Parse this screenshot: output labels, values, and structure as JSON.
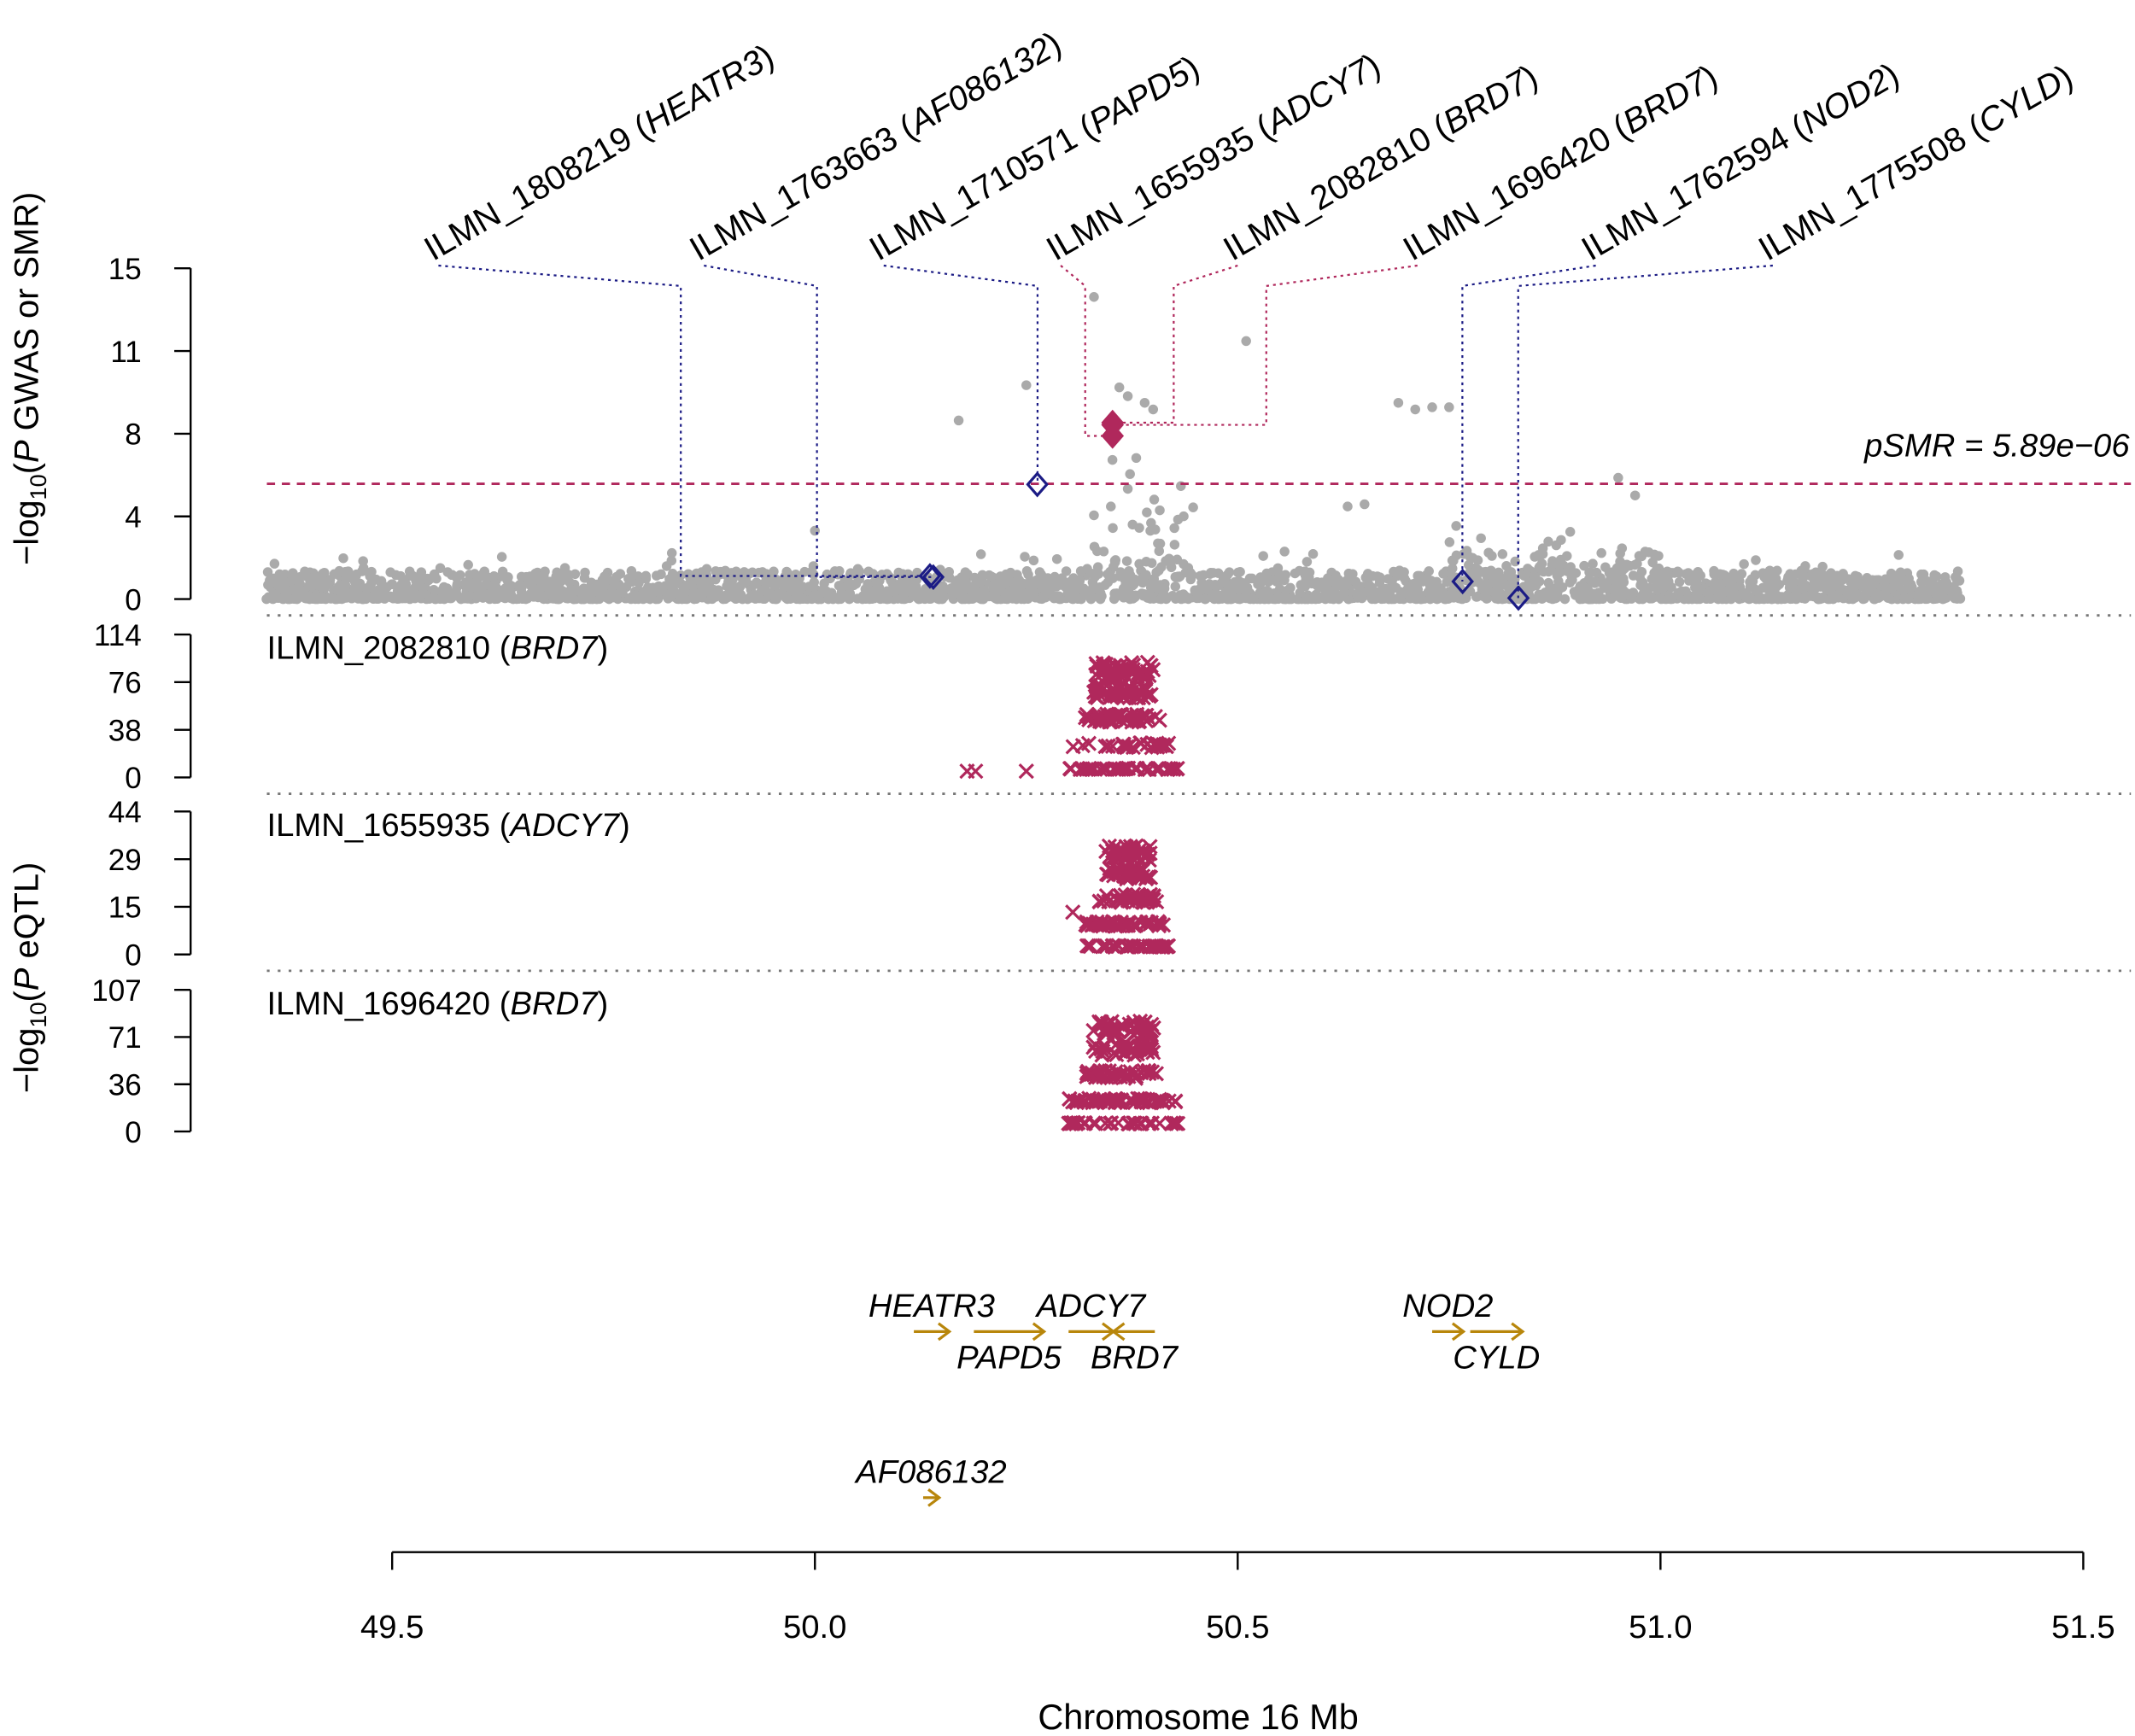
{
  "chart_data": {
    "type": "scatter",
    "xlabel": "Chromosome 16 Mb",
    "xlim": [
      49.5,
      51.5
    ],
    "xticks": [
      "49.5",
      "50.0",
      "50.5",
      "51.0",
      "51.5"
    ],
    "colors": {
      "gwas": "#aaaaaa",
      "smr_sig": "#b0285c",
      "smr_nonsig": "#1c1c85",
      "gene": "#b8860b"
    },
    "top_panel": {
      "ylabel_prefix": "−log",
      "ylabel_sub": "10",
      "ylabel_open": "(",
      "ylabel_italic": "P",
      "ylabel_rest": " GWAS or SMR)",
      "ylim": [
        0,
        15
      ],
      "yticks": [
        "0",
        "4",
        "8",
        "11",
        "15"
      ],
      "threshold": 5.23,
      "threshold_label": "pSMR = 5.89e−06",
      "gwas_peaks": [
        [
          50.33,
          13.7
        ],
        [
          50.51,
          11.7
        ],
        [
          50.25,
          9.7
        ],
        [
          50.17,
          8.1
        ],
        [
          50.69,
          8.9
        ],
        [
          50.71,
          8.6
        ],
        [
          50.73,
          8.7
        ],
        [
          50.75,
          8.7
        ],
        [
          50.36,
          9.6
        ],
        [
          50.37,
          9.2
        ],
        [
          50.39,
          8.9
        ],
        [
          50.4,
          8.6
        ],
        [
          50.38,
          6.4
        ],
        [
          50.33,
          3.8
        ],
        [
          50.35,
          4.2
        ],
        [
          50.37,
          5.0
        ],
        [
          50.0,
          3.1
        ],
        [
          50.63,
          4.2
        ],
        [
          50.65,
          4.3
        ],
        [
          50.95,
          5.5
        ],
        [
          50.97,
          4.7
        ]
      ],
      "probes": [
        {
          "probe": "ILMN_1808219",
          "gene": "HEATR3",
          "sig": false,
          "pos": 50.136,
          "smr": 1.05
        },
        {
          "probe": "ILMN_1763663",
          "gene": "AF086132",
          "sig": false,
          "pos": 50.14,
          "smr": 1.0
        },
        {
          "probe": "ILMN_1710571",
          "gene": "PAPD5",
          "sig": false,
          "pos": 50.263,
          "smr": 5.2
        },
        {
          "probe": "ILMN_1655935",
          "gene": "ADCY7",
          "sig": true,
          "pos": 50.352,
          "smr": 7.4
        },
        {
          "probe": "ILMN_2082810",
          "gene": "BRD7",
          "sig": true,
          "pos": 50.352,
          "smr": 8.0
        },
        {
          "probe": "ILMN_1696420",
          "gene": "BRD7",
          "sig": true,
          "pos": 50.352,
          "smr": 7.9
        },
        {
          "probe": "ILMN_1762594",
          "gene": "NOD2",
          "sig": false,
          "pos": 50.766,
          "smr": 0.8
        },
        {
          "probe": "ILMN_1775508",
          "gene": "CYLD",
          "sig": false,
          "pos": 50.832,
          "smr": 0.05
        }
      ]
    },
    "eqtl_ylabel": {
      "prefix": "−log",
      "sub": "10",
      "open": "(",
      "italic": "P",
      "rest": " eQTL)"
    },
    "eqtl_panels": [
      {
        "probe": "ILMN_2082810",
        "gene": "BRD7",
        "ymax": 114,
        "yticks": [
          "0",
          "38",
          "76",
          "114"
        ],
        "range": [
          50.29,
          50.42
        ],
        "peak": 90,
        "outliers": [
          [
            50.18,
            5
          ],
          [
            50.19,
            5
          ],
          [
            50.25,
            5
          ]
        ]
      },
      {
        "probe": "ILMN_1655935",
        "gene": "ADCY7",
        "ymax": 44,
        "yticks": [
          "0",
          "15",
          "29",
          "44"
        ],
        "range": [
          50.31,
          50.41
        ],
        "peak": 33,
        "outliers": [
          [
            50.305,
            13
          ]
        ]
      },
      {
        "probe": "ILMN_1696420",
        "gene": "BRD7",
        "ymax": 107,
        "yticks": [
          "0",
          "36",
          "71",
          "107"
        ],
        "range": [
          50.29,
          50.42
        ],
        "peak": 82,
        "outliers": []
      }
    ],
    "genes": [
      {
        "name": "HEATR3",
        "start": 50.117,
        "end": 50.159,
        "strand": "+",
        "row": 0,
        "label": "above"
      },
      {
        "name": "PAPD5",
        "start": 50.188,
        "end": 50.271,
        "strand": "+",
        "row": 0,
        "label": "below"
      },
      {
        "name": "ADCY7",
        "start": 50.3,
        "end": 50.353,
        "strand": "+",
        "row": 0,
        "label": "above"
      },
      {
        "name": "BRD7",
        "start": 50.353,
        "end": 50.402,
        "strand": "-",
        "row": 0,
        "label": "below"
      },
      {
        "name": "NOD2",
        "start": 50.73,
        "end": 50.767,
        "strand": "+",
        "row": 0,
        "label": "above"
      },
      {
        "name": "CYLD",
        "start": 50.775,
        "end": 50.837,
        "strand": "+",
        "row": 0,
        "label": "below"
      },
      {
        "name": "AF086132",
        "start": 50.128,
        "end": 50.147,
        "strand": "+",
        "row": 1,
        "label": "above"
      }
    ]
  }
}
